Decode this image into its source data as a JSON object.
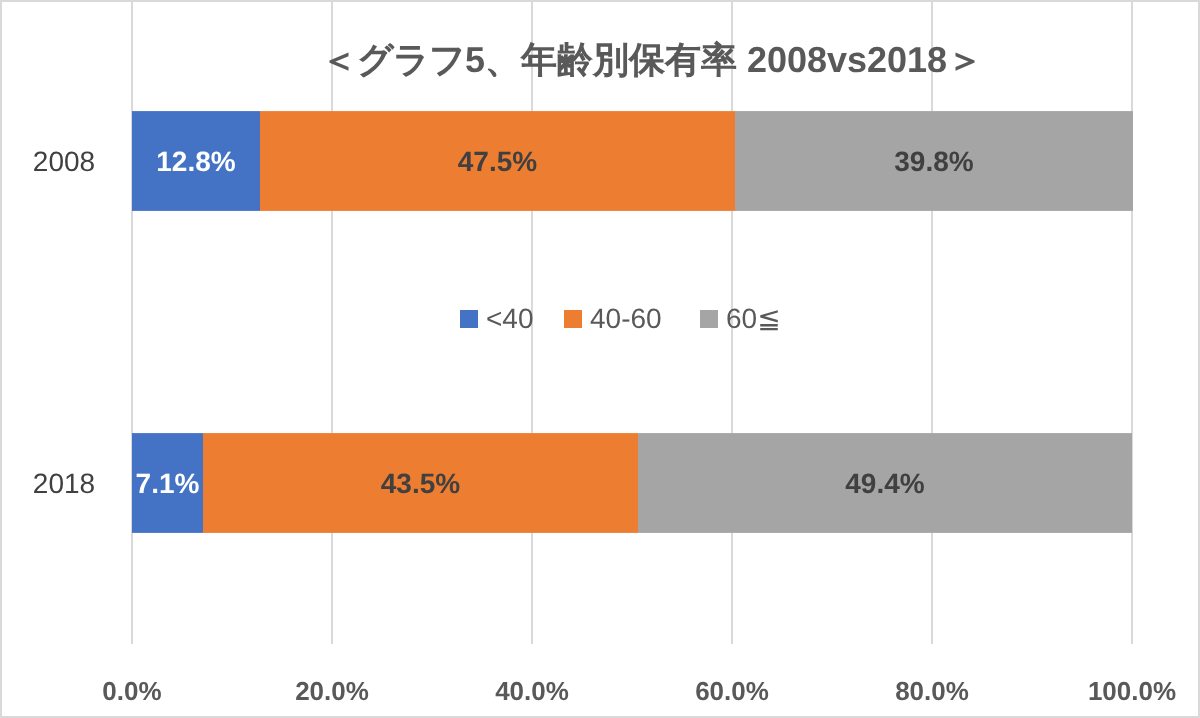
{
  "chart_data": {
    "type": "bar",
    "orientation": "horizontal",
    "stacked": true,
    "title": "＜グラフ5、年齢別保有率  2008vs2018＞",
    "categories": [
      "2008",
      "2018"
    ],
    "series": [
      {
        "name": "<40",
        "color": "#4472c4",
        "values": [
          12.8,
          7.1
        ],
        "value_labels": [
          "12.8%",
          "7.1%"
        ]
      },
      {
        "name": "40-60",
        "color": "#ed7d31",
        "values": [
          47.5,
          43.5
        ],
        "value_labels": [
          "47.5%",
          "43.5%"
        ]
      },
      {
        "name": "60≦",
        "color": "#a5a5a5",
        "values": [
          39.8,
          49.4
        ],
        "value_labels": [
          "39.8%",
          "49.4%"
        ]
      }
    ],
    "xlim": [
      0,
      100
    ],
    "xticks": [
      {
        "value": 0,
        "label": "0.0%"
      },
      {
        "value": 20,
        "label": "20.0%"
      },
      {
        "value": 40,
        "label": "40.0%"
      },
      {
        "value": 60,
        "label": "60.0%"
      },
      {
        "value": 80,
        "label": "80.0%"
      },
      {
        "value": 100,
        "label": "100.0%"
      }
    ],
    "grid": "x",
    "legend": "center"
  }
}
